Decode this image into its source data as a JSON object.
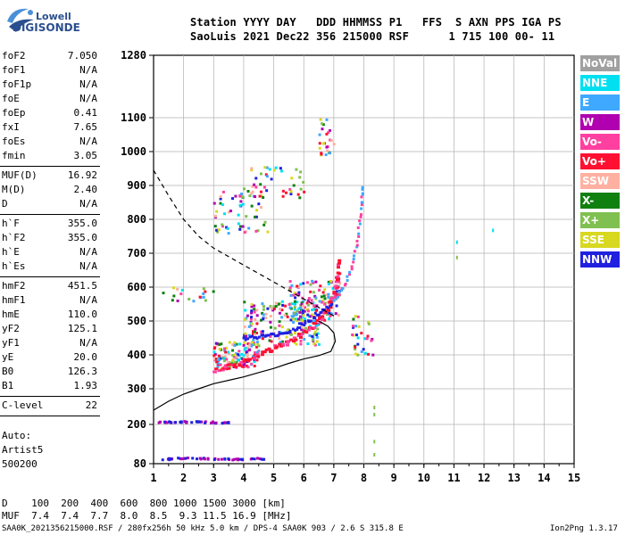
{
  "logo": {
    "line1": "Lowell",
    "line2": "DIGISONDE"
  },
  "header": {
    "line1": "Station YYYY DAY   DDD HHMMSS P1   FFS  S AXN PPS IGA PS",
    "line2": "SaoLuis 2021 Dec22 356 215000 RSF      1 715 100 00- 11"
  },
  "params": [
    {
      "name": "foF2",
      "value": "7.050"
    },
    {
      "name": "foF1",
      "value": "N/A"
    },
    {
      "name": "foF1p",
      "value": "N/A"
    },
    {
      "name": "foE",
      "value": "N/A"
    },
    {
      "name": "foEp",
      "value": "0.41"
    },
    {
      "name": "fxI",
      "value": "7.65"
    },
    {
      "name": "foEs",
      "value": "N/A"
    },
    {
      "name": "fmin",
      "value": "3.05"
    },
    {
      "name": "MUF(D)",
      "value": "16.92"
    },
    {
      "name": "M(D)",
      "value": "2.40"
    },
    {
      "name": "D",
      "value": "N/A"
    },
    {
      "name": "h`F",
      "value": "355.0"
    },
    {
      "name": "h`F2",
      "value": "355.0"
    },
    {
      "name": "h`E",
      "value": "N/A"
    },
    {
      "name": "h`Es",
      "value": "N/A"
    },
    {
      "name": "hmF2",
      "value": "451.5"
    },
    {
      "name": "hmF1",
      "value": "N/A"
    },
    {
      "name": "hmE",
      "value": "110.0"
    },
    {
      "name": "yF2",
      "value": "125.1"
    },
    {
      "name": "yF1",
      "value": "N/A"
    },
    {
      "name": "yE",
      "value": "20.0"
    },
    {
      "name": "B0",
      "value": "126.3"
    },
    {
      "name": "B1",
      "value": "1.93"
    },
    {
      "name": "C-level",
      "value": "22"
    }
  ],
  "auto": {
    "line1": "Auto:",
    "line2": "Artist5",
    "line3": "500200"
  },
  "legend": [
    {
      "label": "NoVal",
      "color": "#a0a0a0"
    },
    {
      "label": "NNE",
      "color": "#00e0f0"
    },
    {
      "label": "E",
      "color": "#3fa8ff"
    },
    {
      "label": "W",
      "color": "#b000b0"
    },
    {
      "label": "Vo-",
      "color": "#ff40a0"
    },
    {
      "label": "Vo+",
      "color": "#ff1030"
    },
    {
      "label": "SSW",
      "color": "#ffb0a0"
    },
    {
      "label": "X-",
      "color": "#108010"
    },
    {
      "label": "X+",
      "color": "#80c050"
    },
    {
      "label": "SSE",
      "color": "#d8d820"
    },
    {
      "label": "NNW",
      "color": "#2020e0"
    }
  ],
  "bottom": {
    "d_line": "D    100  200  400  600  800 1000 1500 3000 [km]",
    "muf_line": "MUF  7.4  7.4  7.7  8.0  8.5  9.3 11.5 16.9 [MHz]"
  },
  "footer": {
    "left": "SAA0K_2021356215000.RSF / 280fx256h 50 kHz 5.0 km / DPS-4 SAA0K 903 / 2.6 S 315.8 E",
    "right": "Ion2Png 1.3.17"
  },
  "chart_data": {
    "type": "scatter",
    "x_ticks": [
      "1",
      "2",
      "3",
      "4",
      "5",
      "6",
      "7",
      "8",
      "9",
      "10",
      "11",
      "12",
      "13",
      "14",
      "15"
    ],
    "y_ticks": [
      "80",
      "200",
      "300",
      "400",
      "500",
      "600",
      "700",
      "800",
      "900",
      "1000",
      "1100",
      "1280"
    ],
    "xlim": [
      1,
      15
    ],
    "ylim": [
      80,
      1280
    ],
    "grid": true,
    "legend_position": "right",
    "o_trace": [
      [
        3.0,
        350
      ],
      [
        3.5,
        365
      ],
      [
        4.0,
        380
      ],
      [
        4.5,
        400
      ],
      [
        5.0,
        420
      ],
      [
        5.5,
        440
      ],
      [
        6.0,
        465
      ],
      [
        6.5,
        500
      ],
      [
        6.8,
        540
      ],
      [
        7.0,
        580
      ],
      [
        7.1,
        620
      ],
      [
        7.2,
        680
      ]
    ],
    "x_trace": [
      [
        4.0,
        450
      ],
      [
        4.5,
        455
      ],
      [
        5.0,
        460
      ],
      [
        5.5,
        470
      ],
      [
        6.0,
        490
      ],
      [
        6.5,
        520
      ],
      [
        7.0,
        560
      ],
      [
        7.3,
        600
      ],
      [
        7.6,
        660
      ],
      [
        7.8,
        750
      ],
      [
        7.9,
        840
      ],
      [
        7.95,
        900
      ]
    ],
    "profile_solid": [
      [
        1.0,
        240
      ],
      [
        1.5,
        265
      ],
      [
        2.0,
        285
      ],
      [
        2.5,
        300
      ],
      [
        3.0,
        315
      ],
      [
        3.5,
        325
      ],
      [
        4.0,
        335
      ],
      [
        4.5,
        348
      ],
      [
        5.0,
        360
      ],
      [
        5.5,
        375
      ],
      [
        6.0,
        388
      ],
      [
        6.5,
        398
      ],
      [
        6.9,
        410
      ],
      [
        7.05,
        440
      ],
      [
        7.0,
        465
      ],
      [
        6.8,
        485
      ],
      [
        6.5,
        500
      ]
    ],
    "profile_dashed": [
      [
        1.0,
        945
      ],
      [
        1.5,
        870
      ],
      [
        2.0,
        800
      ],
      [
        2.5,
        750
      ],
      [
        3.0,
        715
      ],
      [
        3.5,
        690
      ],
      [
        4.0,
        665
      ],
      [
        4.5,
        640
      ],
      [
        5.0,
        615
      ],
      [
        5.5,
        590
      ],
      [
        6.0,
        565
      ],
      [
        6.5,
        540
      ],
      [
        7.0,
        515
      ]
    ],
    "es_echoes": [
      [
        1.1,
        207
      ],
      [
        1.5,
        207
      ],
      [
        2.0,
        208
      ],
      [
        2.5,
        207
      ],
      [
        3.0,
        206
      ],
      [
        1.2,
        95
      ],
      [
        1.8,
        97
      ],
      [
        2.4,
        96
      ],
      [
        3.0,
        95
      ],
      [
        3.6,
        94
      ],
      [
        4.2,
        96
      ]
    ],
    "clusters": [
      {
        "x": [
          3.0,
          4.5
        ],
        "y": [
          360,
          440
        ],
        "n": 140
      },
      {
        "x": [
          4.0,
          6.5
        ],
        "y": [
          430,
          560
        ],
        "n": 180
      },
      {
        "x": [
          5.5,
          7.2
        ],
        "y": [
          500,
          620
        ],
        "n": 120
      },
      {
        "x": [
          3.0,
          4.8
        ],
        "y": [
          760,
          900
        ],
        "n": 60
      },
      {
        "x": [
          4.0,
          6.0
        ],
        "y": [
          860,
          960
        ],
        "n": 40
      },
      {
        "x": [
          6.5,
          7.0
        ],
        "y": [
          990,
          1100
        ],
        "n": 25
      },
      {
        "x": [
          7.6,
          8.3
        ],
        "y": [
          400,
          520
        ],
        "n": 30
      },
      {
        "x": [
          1.3,
          3.0
        ],
        "y": [
          560,
          600
        ],
        "n": 18
      }
    ]
  }
}
